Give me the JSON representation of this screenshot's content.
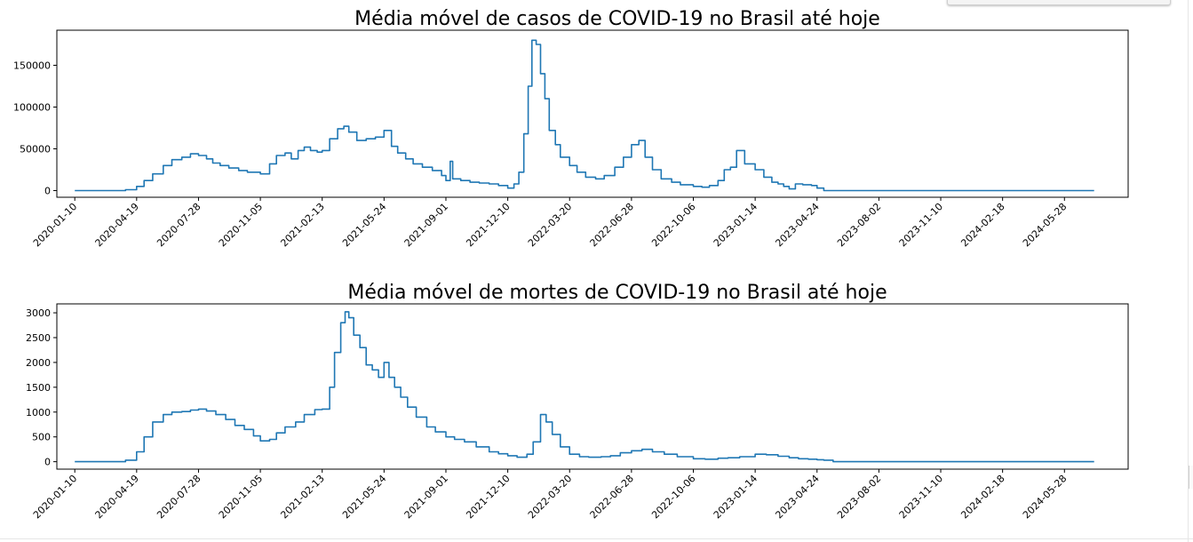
{
  "chart_data": [
    {
      "type": "line",
      "title": "Média móvel de casos de COVID-19 no Brasil até hoje",
      "xlabel": "",
      "ylabel": "",
      "x_type": "date",
      "xlim": [
        "2019-12-12",
        "2024-09-08"
      ],
      "ylim": [
        -8000,
        192000
      ],
      "yticks": [
        0,
        50000,
        100000,
        150000
      ],
      "xticks": [
        "2020-01-10",
        "2020-04-19",
        "2020-07-28",
        "2020-11-05",
        "2021-02-13",
        "2021-05-24",
        "2021-09-01",
        "2021-12-10",
        "2022-03-20",
        "2022-06-28",
        "2022-10-06",
        "2023-01-14",
        "2023-04-24",
        "2023-08-02",
        "2023-11-10",
        "2024-02-18",
        "2024-05-28"
      ],
      "grid": false,
      "color": "#1f77b4",
      "series": [
        {
          "x": [
            "2020-01-10",
            "2020-03-15",
            "2020-04-01",
            "2020-04-19",
            "2020-05-01",
            "2020-05-15",
            "2020-06-01",
            "2020-06-15",
            "2020-07-01",
            "2020-07-15",
            "2020-07-28",
            "2020-08-10",
            "2020-08-20",
            "2020-09-01",
            "2020-09-15",
            "2020-10-01",
            "2020-10-15",
            "2020-11-05",
            "2020-11-20",
            "2020-12-01",
            "2020-12-15",
            "2020-12-25",
            "2021-01-05",
            "2021-01-15",
            "2021-01-25",
            "2021-02-05",
            "2021-02-13",
            "2021-02-25",
            "2021-03-10",
            "2021-03-20",
            "2021-03-28",
            "2021-04-10",
            "2021-04-25",
            "2021-05-10",
            "2021-05-24",
            "2021-06-05",
            "2021-06-15",
            "2021-06-28",
            "2021-07-10",
            "2021-07-25",
            "2021-08-10",
            "2021-08-25",
            "2021-09-01",
            "2021-09-08",
            "2021-09-12",
            "2021-09-25",
            "2021-10-10",
            "2021-10-25",
            "2021-11-10",
            "2021-11-25",
            "2021-12-10",
            "2021-12-20",
            "2021-12-28",
            "2022-01-05",
            "2022-01-12",
            "2022-01-18",
            "2022-01-25",
            "2022-02-01",
            "2022-02-08",
            "2022-02-15",
            "2022-02-25",
            "2022-03-05",
            "2022-03-20",
            "2022-04-01",
            "2022-04-15",
            "2022-05-01",
            "2022-05-15",
            "2022-06-01",
            "2022-06-15",
            "2022-06-28",
            "2022-07-10",
            "2022-07-20",
            "2022-08-01",
            "2022-08-15",
            "2022-09-01",
            "2022-09-15",
            "2022-10-06",
            "2022-10-20",
            "2022-11-01",
            "2022-11-15",
            "2022-11-25",
            "2022-12-05",
            "2022-12-15",
            "2022-12-28",
            "2023-01-14",
            "2023-01-28",
            "2023-02-10",
            "2023-02-20",
            "2023-03-01",
            "2023-03-10",
            "2023-03-20",
            "2023-04-01",
            "2023-04-15",
            "2023-04-24",
            "2023-05-05",
            "2023-05-20",
            "2024-01-01",
            "2024-07-15"
          ],
          "values": [
            0,
            0,
            1000,
            5000,
            12000,
            20000,
            30000,
            37000,
            40000,
            44000,
            42000,
            38000,
            33000,
            30000,
            27000,
            24000,
            22000,
            20000,
            32000,
            42000,
            45000,
            38000,
            48000,
            52000,
            48000,
            46000,
            48000,
            62000,
            74000,
            77000,
            70000,
            60000,
            62000,
            64000,
            72000,
            53000,
            45000,
            38000,
            32000,
            28000,
            24000,
            18000,
            12000,
            35000,
            14000,
            12000,
            10000,
            9000,
            8000,
            6000,
            3000,
            8000,
            22000,
            68000,
            125000,
            180000,
            175000,
            140000,
            110000,
            72000,
            55000,
            40000,
            30000,
            22000,
            16000,
            14000,
            18000,
            28000,
            40000,
            55000,
            60000,
            40000,
            25000,
            14000,
            10000,
            7000,
            5000,
            4000,
            6000,
            12000,
            25000,
            28000,
            48000,
            32000,
            25000,
            16000,
            10000,
            8000,
            5000,
            2000,
            8000,
            7000,
            6000,
            3000,
            0,
            0,
            0,
            0
          ]
        }
      ]
    },
    {
      "type": "line",
      "title": "Média móvel de mortes de COVID-19 no Brasil até hoje",
      "xlabel": "",
      "ylabel": "",
      "x_type": "date",
      "xlim": [
        "2019-12-12",
        "2024-09-08"
      ],
      "ylim": [
        -150,
        3180
      ],
      "yticks": [
        0,
        500,
        1000,
        1500,
        2000,
        2500,
        3000
      ],
      "xticks": [
        "2020-01-10",
        "2020-04-19",
        "2020-07-28",
        "2020-11-05",
        "2021-02-13",
        "2021-05-24",
        "2021-09-01",
        "2021-12-10",
        "2022-03-20",
        "2022-06-28",
        "2022-10-06",
        "2023-01-14",
        "2023-04-24",
        "2023-08-02",
        "2023-11-10",
        "2024-02-18",
        "2024-05-28"
      ],
      "grid": false,
      "color": "#1f77b4",
      "series": [
        {
          "x": [
            "2020-01-10",
            "2020-03-20",
            "2020-04-01",
            "2020-04-19",
            "2020-05-01",
            "2020-05-15",
            "2020-06-01",
            "2020-06-15",
            "2020-07-01",
            "2020-07-15",
            "2020-07-28",
            "2020-08-10",
            "2020-08-25",
            "2020-09-10",
            "2020-09-25",
            "2020-10-10",
            "2020-10-25",
            "2020-11-05",
            "2020-11-20",
            "2020-12-01",
            "2020-12-15",
            "2021-01-01",
            "2021-01-15",
            "2021-02-01",
            "2021-02-13",
            "2021-02-25",
            "2021-03-05",
            "2021-03-15",
            "2021-03-22",
            "2021-03-28",
            "2021-04-05",
            "2021-04-15",
            "2021-04-25",
            "2021-05-05",
            "2021-05-15",
            "2021-05-24",
            "2021-06-01",
            "2021-06-10",
            "2021-06-20",
            "2021-07-01",
            "2021-07-15",
            "2021-08-01",
            "2021-08-15",
            "2021-09-01",
            "2021-09-15",
            "2021-10-01",
            "2021-10-20",
            "2021-11-10",
            "2021-11-25",
            "2021-12-10",
            "2021-12-25",
            "2022-01-10",
            "2022-01-20",
            "2022-02-01",
            "2022-02-10",
            "2022-02-20",
            "2022-03-05",
            "2022-03-20",
            "2022-04-05",
            "2022-04-20",
            "2022-05-10",
            "2022-05-25",
            "2022-06-10",
            "2022-06-28",
            "2022-07-15",
            "2022-08-01",
            "2022-08-20",
            "2022-09-10",
            "2022-10-06",
            "2022-10-25",
            "2022-11-15",
            "2022-12-01",
            "2022-12-20",
            "2023-01-14",
            "2023-02-01",
            "2023-02-20",
            "2023-03-10",
            "2023-03-25",
            "2023-04-10",
            "2023-04-24",
            "2023-05-05",
            "2023-05-20",
            "2024-01-01",
            "2024-07-15"
          ],
          "values": [
            0,
            0,
            30,
            200,
            500,
            800,
            950,
            1000,
            1010,
            1040,
            1060,
            1020,
            950,
            850,
            730,
            650,
            520,
            420,
            450,
            580,
            700,
            800,
            950,
            1050,
            1060,
            1500,
            2200,
            2800,
            3020,
            2900,
            2550,
            2300,
            1950,
            1850,
            1700,
            2000,
            1700,
            1500,
            1300,
            1100,
            900,
            700,
            600,
            500,
            450,
            400,
            300,
            200,
            160,
            120,
            90,
            150,
            400,
            950,
            800,
            550,
            300,
            150,
            100,
            90,
            100,
            120,
            180,
            220,
            250,
            200,
            150,
            100,
            60,
            50,
            70,
            80,
            100,
            150,
            140,
            110,
            80,
            60,
            50,
            40,
            30,
            0,
            0,
            0
          ]
        }
      ]
    }
  ]
}
